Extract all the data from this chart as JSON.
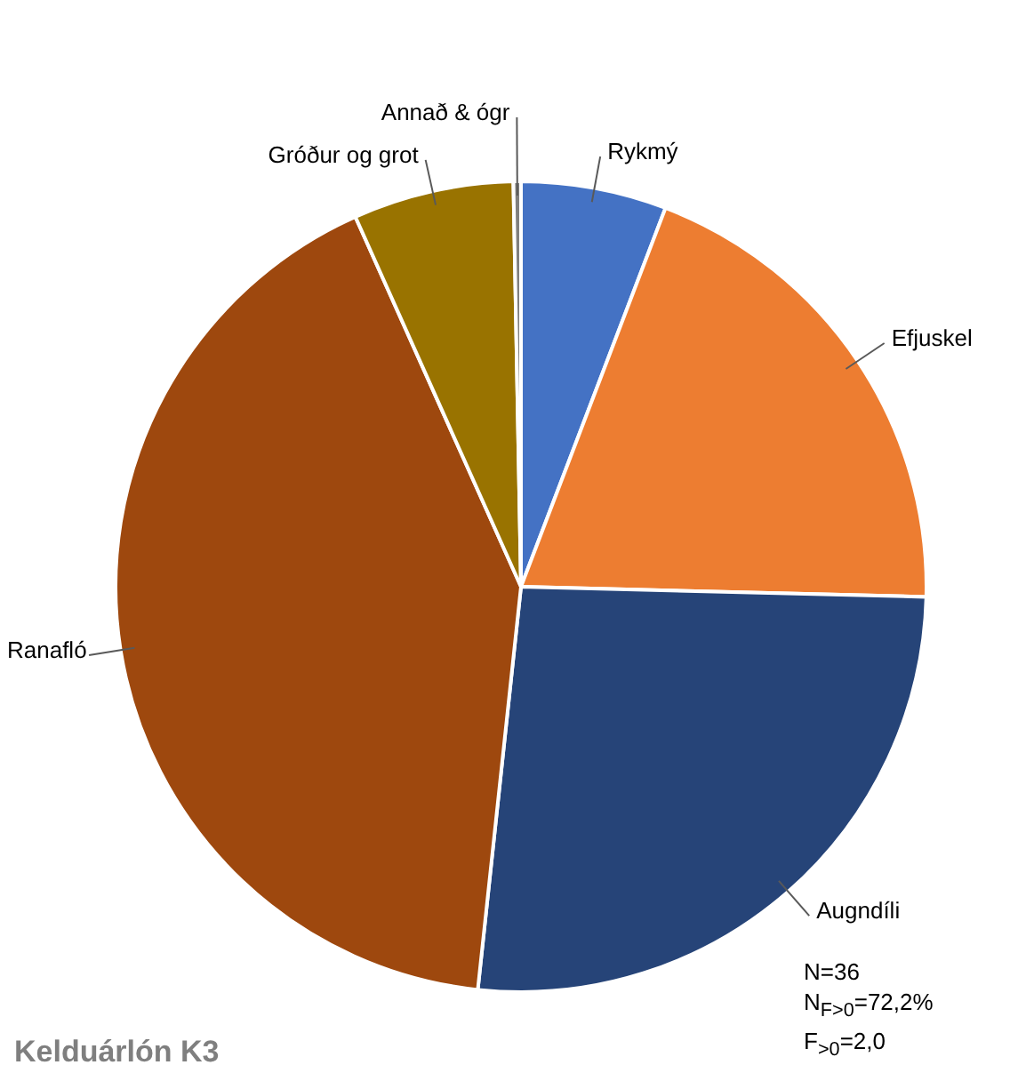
{
  "chart_data": {
    "type": "pie",
    "title": "Kelduárlón K3",
    "categories": [
      "Rykmý",
      "Efjuskel",
      "Augndíli",
      "Ranafló",
      "Gróður og grot",
      "Annað & ógr"
    ],
    "values": [
      5.8,
      19.6,
      26.3,
      41.6,
      6.4,
      0.3
    ],
    "colors": [
      "#4472c4",
      "#ed7d31",
      "#264478",
      "#9e480e",
      "#997300",
      "#7f7f7f"
    ],
    "legend": false,
    "annotations": [
      "N=36",
      "N$_{F>0}$=72,2%",
      "F$_{>0}$=2,0"
    ]
  }
}
